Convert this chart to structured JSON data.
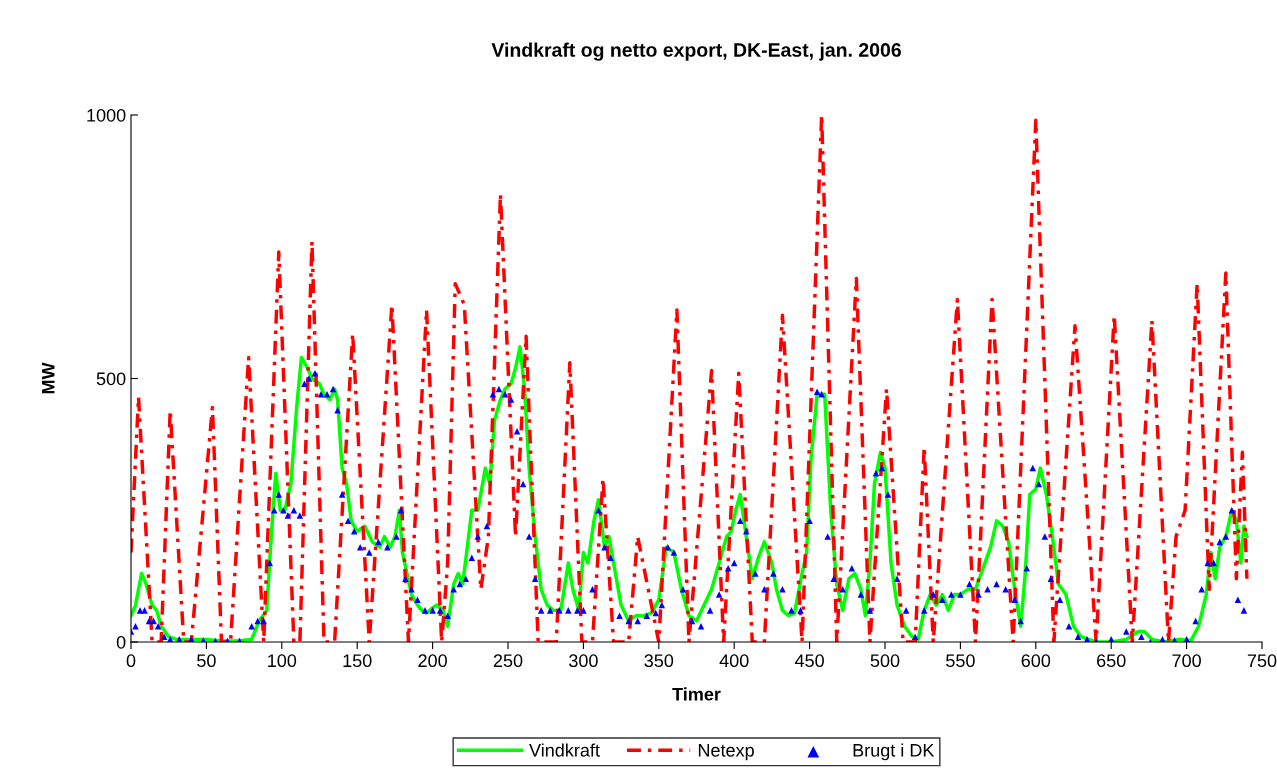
{
  "chart_data": {
    "type": "line",
    "title": "Vindkraft og netto export, DK-East, jan. 2006",
    "xlabel": "Timer",
    "ylabel": "MW",
    "xlim": [
      0,
      750
    ],
    "xticks": [
      0,
      50,
      100,
      150,
      200,
      250,
      300,
      350,
      400,
      450,
      500,
      550,
      600,
      650,
      700,
      750
    ],
    "ylim": [
      0,
      1000
    ],
    "yticks": [
      0,
      500,
      1000
    ],
    "grid": false,
    "legend": "bottom",
    "series": [
      {
        "name": "Vindkraft",
        "color": "#00ff00",
        "line_style": "solid",
        "marker": "none",
        "x": [
          0,
          3,
          7,
          10,
          14,
          17,
          20,
          25,
          30,
          40,
          50,
          60,
          70,
          80,
          85,
          90,
          93,
          96,
          99,
          102,
          106,
          110,
          113,
          117,
          120,
          125,
          128,
          132,
          135,
          137,
          140,
          143,
          146,
          150,
          155,
          160,
          165,
          168,
          172,
          175,
          178,
          180,
          183,
          186,
          190,
          193,
          196,
          200,
          203,
          207,
          210,
          214,
          217,
          220,
          223,
          226,
          230,
          235,
          238,
          241,
          245,
          248,
          252,
          255,
          258,
          261,
          264,
          268,
          272,
          276,
          280,
          285,
          290,
          293,
          297,
          300,
          303,
          307,
          310,
          314,
          317,
          320,
          325,
          330,
          335,
          340,
          345,
          350,
          355,
          360,
          365,
          370,
          375,
          380,
          385,
          390,
          395,
          398,
          401,
          404,
          408,
          412,
          416,
          420,
          425,
          428,
          432,
          436,
          440,
          445,
          448,
          451,
          455,
          460,
          464,
          468,
          472,
          476,
          480,
          484,
          487,
          490,
          493,
          497,
          500,
          504,
          508,
          513,
          518,
          522,
          526,
          530,
          534,
          538,
          542,
          546,
          550,
          555,
          560,
          565,
          570,
          574,
          578,
          582,
          586,
          590,
          593,
          596,
          600,
          603,
          607,
          611,
          615,
          620,
          625,
          630,
          635,
          640,
          650,
          660,
          668,
          672,
          677,
          685,
          695,
          703,
          708,
          713,
          716,
          719,
          722,
          726,
          730,
          733,
          736,
          738,
          740
        ],
        "values": [
          50,
          70,
          130,
          110,
          70,
          60,
          30,
          10,
          5,
          5,
          5,
          2,
          2,
          5,
          40,
          60,
          200,
          320,
          250,
          250,
          300,
          450,
          540,
          520,
          500,
          490,
          470,
          460,
          480,
          460,
          330,
          300,
          230,
          210,
          220,
          190,
          180,
          200,
          180,
          200,
          250,
          170,
          130,
          90,
          70,
          60,
          55,
          65,
          70,
          60,
          30,
          110,
          130,
          110,
          180,
          250,
          250,
          330,
          300,
          420,
          460,
          480,
          490,
          520,
          560,
          480,
          330,
          200,
          100,
          70,
          60,
          60,
          150,
          100,
          60,
          170,
          150,
          230,
          270,
          180,
          200,
          150,
          70,
          40,
          50,
          50,
          55,
          80,
          180,
          170,
          100,
          50,
          40,
          70,
          100,
          150,
          200,
          210,
          250,
          280,
          200,
          120,
          160,
          190,
          150,
          100,
          60,
          50,
          55,
          130,
          170,
          350,
          470,
          470,
          250,
          110,
          60,
          120,
          130,
          100,
          50,
          150,
          300,
          360,
          330,
          150,
          70,
          30,
          10,
          5,
          60,
          90,
          70,
          90,
          60,
          90,
          90,
          100,
          100,
          140,
          180,
          230,
          220,
          190,
          100,
          30,
          130,
          280,
          290,
          330,
          280,
          200,
          110,
          90,
          30,
          10,
          5,
          0,
          0,
          5,
          20,
          20,
          5,
          0,
          5,
          3,
          30,
          90,
          170,
          120,
          180,
          200,
          250,
          230,
          150,
          220,
          200
        ]
      },
      {
        "name": "Netexp",
        "color": "#ff0000",
        "line_style": "dashdot",
        "marker": "none",
        "x": [
          0,
          5,
          14,
          20,
          26,
          35,
          40,
          54,
          60,
          66,
          78,
          88,
          98,
          108,
          112,
          120,
          128,
          135,
          147,
          158,
          173,
          184,
          196,
          206,
          210,
          215,
          221,
          232,
          237,
          245,
          255,
          262,
          270,
          282,
          291,
          299,
          306,
          313,
          320,
          330,
          336,
          350,
          362,
          370,
          385,
          393,
          403,
          412,
          420,
          432,
          445,
          458,
          468,
          481,
          490,
          501,
          512,
          520,
          526,
          532,
          548,
          560,
          571,
          585,
          600,
          612,
          626,
          640,
          652,
          664,
          677,
          688,
          693,
          699,
          707,
          715,
          726,
          733,
          737,
          740
        ],
        "values": [
          170,
          465,
          0,
          0,
          440,
          0,
          0,
          445,
          0,
          0,
          540,
          0,
          740,
          0,
          0,
          760,
          0,
          0,
          585,
          0,
          640,
          0,
          630,
          0,
          150,
          680,
          640,
          100,
          200,
          850,
          200,
          580,
          0,
          0,
          530,
          0,
          0,
          310,
          0,
          0,
          200,
          0,
          630,
          0,
          515,
          0,
          510,
          0,
          0,
          620,
          0,
          1000,
          0,
          690,
          0,
          480,
          0,
          0,
          370,
          0,
          650,
          0,
          650,
          0,
          990,
          0,
          600,
          0,
          620,
          0,
          610,
          0,
          200,
          250,
          680,
          100,
          700,
          120,
          360,
          120
        ]
      },
      {
        "name": "Brugt i DK",
        "type": "scatter",
        "color": "#0000ff",
        "marker": "triangle",
        "x": [
          0,
          3,
          6,
          9,
          12,
          15,
          18,
          22,
          26,
          32,
          40,
          48,
          56,
          64,
          72,
          80,
          84,
          88,
          92,
          95,
          98,
          101,
          104,
          108,
          112,
          115,
          118,
          122,
          126,
          130,
          134,
          137,
          140,
          144,
          148,
          152,
          158,
          164,
          170,
          176,
          179,
          182,
          186,
          190,
          195,
          200,
          205,
          210,
          214,
          218,
          222,
          226,
          230,
          236,
          240,
          244,
          248,
          252,
          256,
          260,
          264,
          268,
          272,
          278,
          284,
          290,
          296,
          300,
          306,
          310,
          314,
          318,
          324,
          330,
          336,
          342,
          348,
          352,
          356,
          360,
          366,
          372,
          378,
          384,
          390,
          396,
          400,
          404,
          408,
          414,
          420,
          426,
          432,
          438,
          444,
          450,
          455,
          458,
          462,
          466,
          472,
          478,
          484,
          490,
          494,
          498,
          502,
          508,
          514,
          520,
          526,
          532,
          538,
          544,
          550,
          556,
          562,
          568,
          574,
          580,
          586,
          590,
          594,
          598,
          602,
          606,
          610,
          616,
          622,
          628,
          634,
          640,
          650,
          660,
          670,
          676,
          684,
          692,
          700,
          706,
          710,
          714,
          718,
          722,
          726,
          730,
          734,
          738
        ],
        "values": [
          20,
          30,
          60,
          60,
          40,
          40,
          30,
          10,
          5,
          5,
          5,
          3,
          2,
          2,
          2,
          30,
          40,
          40,
          150,
          250,
          280,
          250,
          240,
          250,
          240,
          490,
          500,
          510,
          470,
          470,
          480,
          440,
          280,
          230,
          210,
          180,
          170,
          190,
          180,
          200,
          250,
          120,
          100,
          80,
          60,
          60,
          60,
          50,
          100,
          110,
          120,
          160,
          200,
          220,
          470,
          480,
          470,
          460,
          400,
          300,
          200,
          120,
          60,
          60,
          60,
          60,
          60,
          60,
          100,
          250,
          180,
          160,
          50,
          40,
          40,
          50,
          55,
          70,
          180,
          170,
          100,
          40,
          30,
          60,
          90,
          140,
          150,
          230,
          210,
          130,
          100,
          130,
          100,
          60,
          60,
          230,
          475,
          470,
          200,
          120,
          100,
          140,
          90,
          60,
          320,
          330,
          280,
          120,
          60,
          10,
          60,
          90,
          80,
          90,
          90,
          110,
          90,
          100,
          110,
          100,
          80,
          40,
          140,
          330,
          300,
          200,
          120,
          80,
          30,
          10,
          5,
          0,
          5,
          20,
          10,
          0,
          5,
          3,
          5,
          40,
          100,
          150,
          150,
          190,
          200,
          250,
          80,
          60
        ]
      }
    ]
  }
}
